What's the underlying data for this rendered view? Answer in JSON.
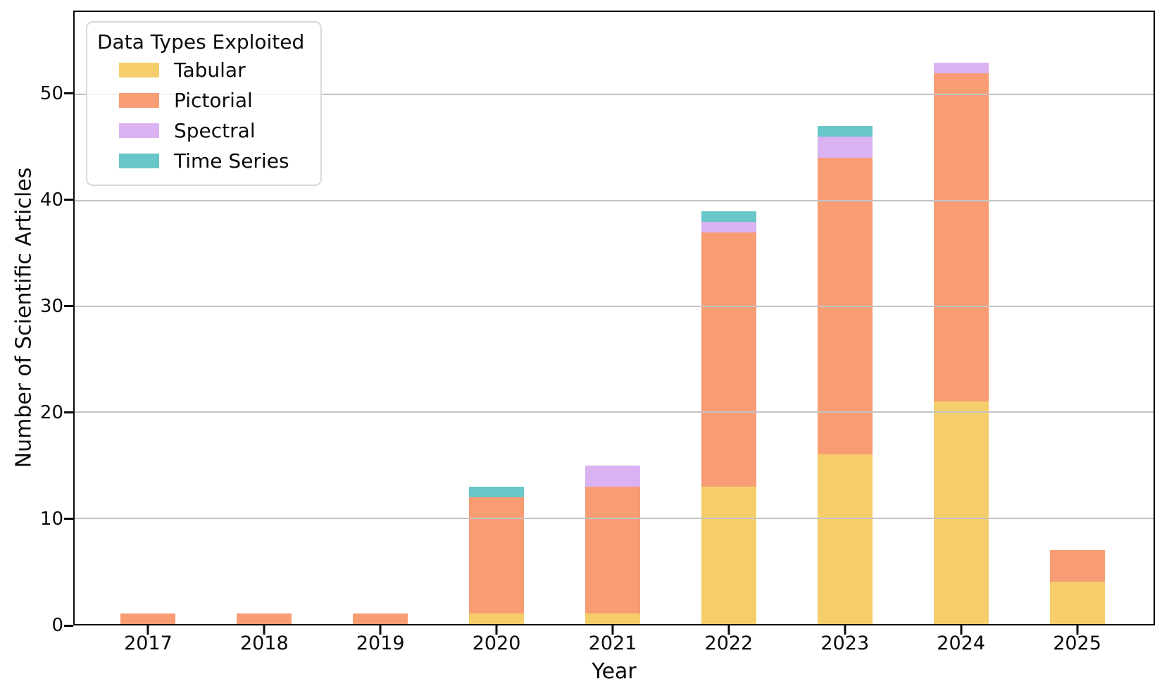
{
  "figure": {
    "background": "#ffffff"
  },
  "axes": {
    "xlabel": "Year",
    "ylabel": "Number of Scientific Articles",
    "yticks": [
      0,
      10,
      20,
      30,
      40,
      50
    ],
    "xticks": [
      "2017",
      "2018",
      "2019",
      "2020",
      "2021",
      "2022",
      "2023",
      "2024",
      "2025"
    ]
  },
  "legend": {
    "title": "Data Types Exploited",
    "items": [
      {
        "label": "Tabular",
        "color": "#F5CE6B"
      },
      {
        "label": "Pictorial",
        "color": "#F89C74"
      },
      {
        "label": "Spectral",
        "color": "#DAB2F2"
      },
      {
        "label": "Time Series",
        "color": "#69C6C9"
      }
    ]
  },
  "chart_data": {
    "type": "bar",
    "stacked": true,
    "title": "",
    "xlabel": "Year",
    "ylabel": "Number of Scientific Articles",
    "categories": [
      "2017",
      "2018",
      "2019",
      "2020",
      "2021",
      "2022",
      "2023",
      "2024",
      "2025"
    ],
    "series": [
      {
        "name": "Tabular",
        "color": "#F5CE6B",
        "values": [
          0,
          0,
          0,
          1,
          1,
          13,
          16,
          21,
          4
        ]
      },
      {
        "name": "Pictorial",
        "color": "#F89C74",
        "values": [
          1,
          1,
          1,
          11,
          12,
          24,
          28,
          31,
          3
        ]
      },
      {
        "name": "Spectral",
        "color": "#DAB2F2",
        "values": [
          0,
          0,
          0,
          0,
          2,
          1,
          2,
          1,
          0
        ]
      },
      {
        "name": "Time Series",
        "color": "#69C6C9",
        "values": [
          0,
          0,
          0,
          1,
          0,
          1,
          1,
          0,
          0
        ]
      }
    ],
    "totals": [
      1,
      1,
      1,
      13,
      15,
      39,
      47,
      53,
      7
    ],
    "ylim": [
      0,
      57.8
    ],
    "yticks": [
      0,
      10,
      20,
      30,
      40,
      50
    ],
    "grid": "horizontal gridlines drawn over bars",
    "legend_position": "upper left",
    "legend_title": "Data Types Exploited"
  },
  "style_colors": {
    "gridline": "#c3c3c3",
    "spine": "#0a0a0a",
    "text": "#000000"
  }
}
